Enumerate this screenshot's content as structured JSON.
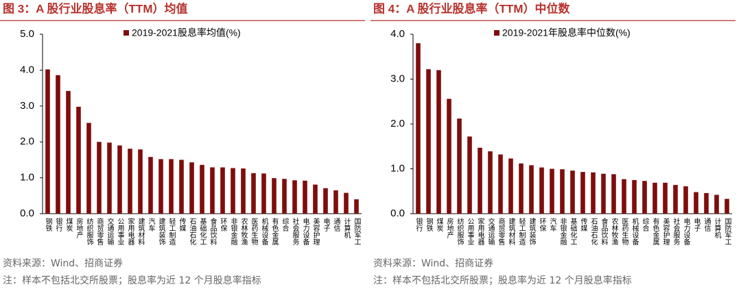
{
  "chart_data": [
    {
      "type": "bar",
      "title": "图 3：A 股行业股息率（TTM）均值",
      "categories": [
        "钢铁",
        "银行",
        "煤炭",
        "房地产",
        "纺织服饰",
        "商贸零售",
        "交通运输",
        "公用事业",
        "家用电器",
        "建筑材料",
        "汽车",
        "建筑装饰",
        "轻工制造",
        "传媒",
        "石油石化",
        "基础化工",
        "食品饮料",
        "环保",
        "非银金融",
        "农林牧渔",
        "医药生物",
        "机械设备",
        "有色金属",
        "综合",
        "社会服务",
        "电力设备",
        "美容护理",
        "电子",
        "通信",
        "计算机",
        "国防军工"
      ],
      "series": [
        {
          "name": "2019-2021股息率均值(%)",
          "color": "#7f0d0d",
          "values": [
            4.02,
            3.86,
            3.42,
            2.98,
            2.53,
            2.0,
            1.98,
            1.9,
            1.81,
            1.79,
            1.58,
            1.52,
            1.52,
            1.5,
            1.43,
            1.36,
            1.29,
            1.29,
            1.27,
            1.26,
            1.13,
            1.12,
            0.99,
            0.97,
            0.93,
            0.92,
            0.81,
            0.71,
            0.65,
            0.58,
            0.4
          ]
        }
      ],
      "ylim": [
        0,
        5
      ],
      "yticks": [
        {
          "value": 0,
          "label": "0.0"
        },
        {
          "value": 1,
          "label": "1.0"
        },
        {
          "value": 2,
          "label": "2.0"
        },
        {
          "value": 3,
          "label": "3.0"
        },
        {
          "value": 4,
          "label": "4.0"
        },
        {
          "value": 5,
          "label": "5.0"
        }
      ],
      "grid": false,
      "source": "资料来源：Wind、招商证券",
      "note": "注：样本不包括北交所股票；股息率为近 12 个月股息率指标"
    },
    {
      "type": "bar",
      "title": "图 4：A 股行业股息率（TTM）中位数",
      "categories": [
        "银行",
        "钢铁",
        "煤炭",
        "房地产",
        "纺织服饰",
        "公用事业",
        "家用电器",
        "交通运输",
        "商贸零售",
        "建筑材料",
        "轻工制造",
        "建筑装饰",
        "环保",
        "汽车",
        "非银金融",
        "基础化工",
        "传媒",
        "石油石化",
        "食品饮料",
        "农林牧渔",
        "医药生物",
        "机械设备",
        "综合",
        "有色金属",
        "美容护理",
        "社会服务",
        "电力设备",
        "电子",
        "通信",
        "计算机",
        "国防军工"
      ],
      "series": [
        {
          "name": "2019-2021年股息率中位数(%)",
          "color": "#7f0d0d",
          "values": [
            3.8,
            3.22,
            3.2,
            2.56,
            2.12,
            1.72,
            1.47,
            1.39,
            1.32,
            1.23,
            1.12,
            1.08,
            1.03,
            1.0,
            0.99,
            0.96,
            0.93,
            0.92,
            0.89,
            0.88,
            0.77,
            0.75,
            0.73,
            0.69,
            0.69,
            0.64,
            0.61,
            0.48,
            0.46,
            0.42,
            0.33
          ]
        }
      ],
      "ylim": [
        0,
        4
      ],
      "yticks": [
        {
          "value": 0,
          "label": "0.0"
        },
        {
          "value": 1,
          "label": "1.0"
        },
        {
          "value": 2,
          "label": "2.0"
        },
        {
          "value": 3,
          "label": "3.0"
        },
        {
          "value": 4,
          "label": "4.0"
        }
      ],
      "grid": false,
      "source": "资料来源：Wind、招商证券",
      "note": "注：样本不包括北交所股票；股息率为近 12 个月股息率指标"
    }
  ]
}
